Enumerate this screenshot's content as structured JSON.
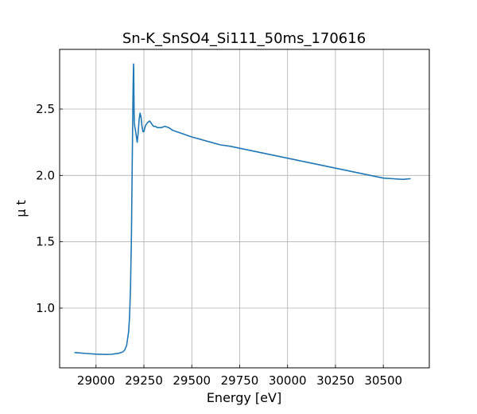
{
  "chart_data": {
    "type": "line",
    "title": "Sn-K_SnSO4_Si111_50ms_170616",
    "xlabel": "Energy [eV]",
    "ylabel": "μ t",
    "xlim": [
      28810,
      30740
    ],
    "ylim": [
      0.55,
      2.95
    ],
    "xticks": [
      29000,
      29250,
      29500,
      29750,
      30000,
      30250,
      30500
    ],
    "xtick_labels": [
      "29000",
      "29250",
      "29500",
      "29750",
      "30000",
      "30250",
      "30500"
    ],
    "yticks": [
      1.0,
      1.5,
      2.0,
      2.5
    ],
    "ytick_labels": [
      "1.0",
      "1.5",
      "2.0",
      "2.5"
    ],
    "grid": true,
    "line_color": "#1f77b4",
    "series": [
      {
        "x": [
          28890,
          28950,
          29000,
          29050,
          29080,
          29120,
          29140,
          29150,
          29160,
          29170,
          29175,
          29180,
          29185,
          29188,
          29191,
          29193,
          29195,
          29196,
          29197,
          29198,
          29199,
          29200,
          29202,
          29205,
          29210,
          29215,
          29220,
          29225,
          29230,
          29235,
          29240,
          29245,
          29250,
          29255,
          29260,
          29265,
          29270,
          29280,
          29290,
          29300,
          29310,
          29320,
          29330,
          29340,
          29360,
          29380,
          29400,
          29420,
          29440,
          29460,
          29480,
          29500,
          29550,
          29600,
          29650,
          29700,
          29750,
          29800,
          29850,
          29900,
          29950,
          30000,
          30050,
          30100,
          30150,
          30200,
          30250,
          30300,
          30350,
          30400,
          30450,
          30500,
          30550,
          30600,
          30640
        ],
        "y": [
          0.665,
          0.658,
          0.653,
          0.651,
          0.652,
          0.66,
          0.67,
          0.685,
          0.72,
          0.82,
          0.93,
          1.15,
          1.55,
          1.95,
          2.35,
          2.6,
          2.78,
          2.84,
          2.8,
          2.6,
          2.47,
          2.4,
          2.37,
          2.35,
          2.3,
          2.25,
          2.32,
          2.42,
          2.47,
          2.44,
          2.37,
          2.33,
          2.33,
          2.36,
          2.38,
          2.39,
          2.4,
          2.41,
          2.39,
          2.37,
          2.37,
          2.36,
          2.36,
          2.36,
          2.37,
          2.36,
          2.34,
          2.33,
          2.32,
          2.31,
          2.3,
          2.29,
          2.27,
          2.25,
          2.23,
          2.22,
          2.205,
          2.19,
          2.175,
          2.16,
          2.145,
          2.13,
          2.115,
          2.1,
          2.085,
          2.07,
          2.055,
          2.04,
          2.025,
          2.01,
          1.995,
          1.98,
          1.975,
          1.97,
          1.975
        ]
      }
    ]
  }
}
